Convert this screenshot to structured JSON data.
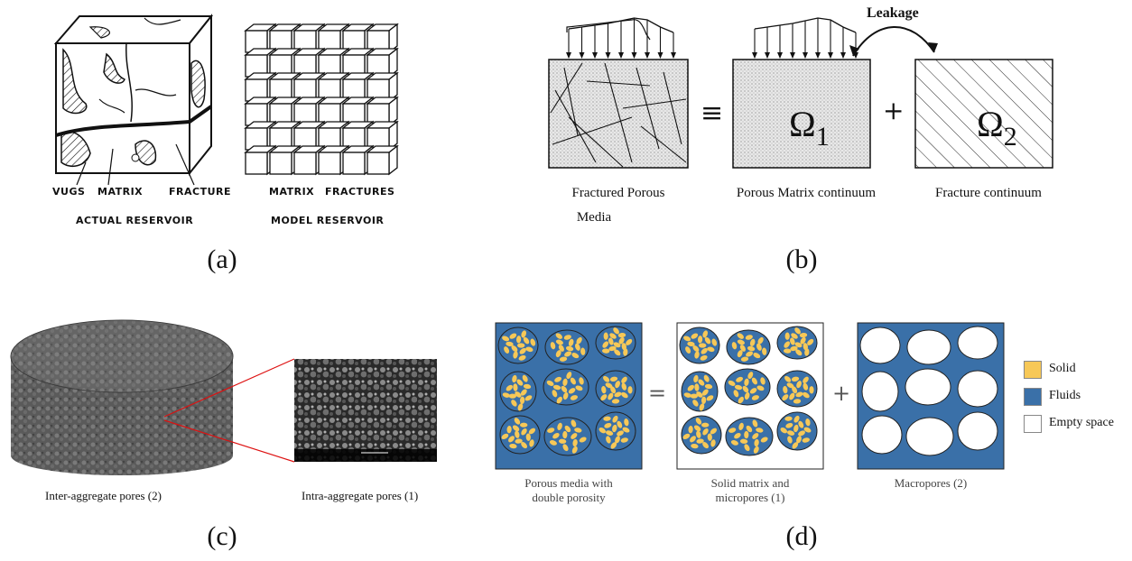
{
  "colors": {
    "solid": "#f7c857",
    "fluids": "#3a70a8",
    "empty": "#ffffff",
    "stroke": "#111111"
  },
  "panel_a": {
    "caption": "(a)",
    "labels": {
      "vugs": "VUGS",
      "matrix_left": "MATRIX",
      "fracture": "FRACTURE",
      "matrix_right": "MATRIX",
      "fractures": "FRACTURES"
    },
    "actual": "ACTUAL RESERVOIR",
    "model": "MODEL RESERVOIR"
  },
  "panel_b": {
    "caption": "(b)",
    "leakage": "Leakage",
    "equiv": "≡",
    "plus": "+",
    "omega1": "Ω",
    "omega1_sub": "1",
    "omega2": "Ω",
    "omega2_sub": "2",
    "label_left_1": "Fractured  Porous",
    "label_left_2": "Media",
    "label_mid": "Porous Matrix continuum",
    "label_right": "Fracture continuum"
  },
  "panel_c": {
    "caption": "(c)",
    "label_left": "Inter-aggregate pores (2)",
    "label_right": "Intra-aggregate pores (1)"
  },
  "panel_d": {
    "caption": "(d)",
    "equals": "=",
    "plus": "+",
    "label1_line1": "Porous media with",
    "label1_line2": "double porosity",
    "label2_line1": "Solid matrix and",
    "label2_line2": "micropores (1)",
    "label3": "Macropores (2)",
    "legend": [
      {
        "name": "Solid",
        "color": "#f7c857"
      },
      {
        "name": "Fluids",
        "color": "#3a70a8"
      },
      {
        "name": "Empty space",
        "color": "#ffffff"
      }
    ]
  }
}
